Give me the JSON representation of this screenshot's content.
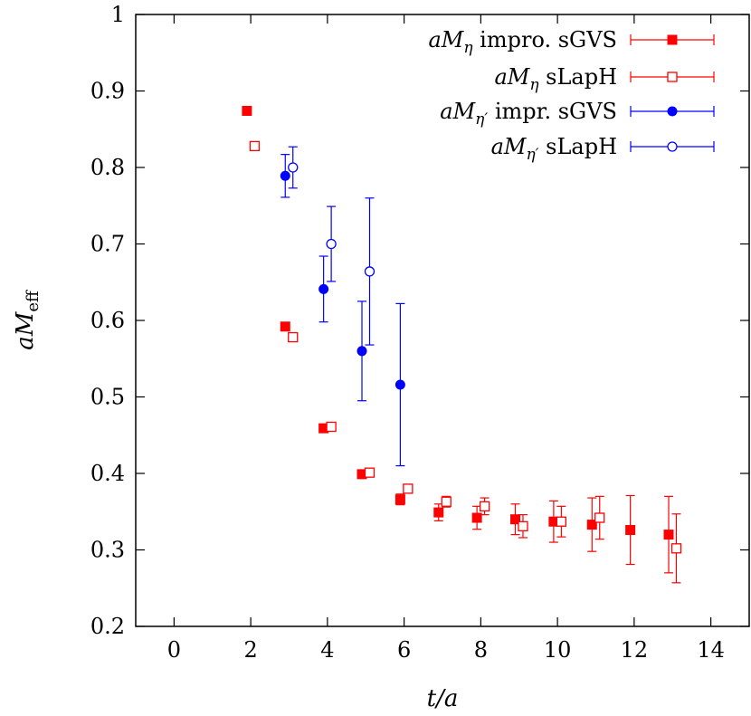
{
  "chart_data": {
    "type": "scatter",
    "xlabel": "t/a",
    "ylabel": "aM_eff",
    "xlim": [
      -1,
      15
    ],
    "ylim": [
      0.2,
      1.0
    ],
    "x_ticks": [
      0,
      2,
      4,
      6,
      8,
      10,
      12,
      14
    ],
    "y_ticks": [
      0.2,
      0.3,
      0.4,
      0.5,
      0.6,
      0.7,
      0.8,
      0.9,
      1.0
    ],
    "x_tick_labels": [
      "0",
      "2",
      "4",
      "6",
      "8",
      "10",
      "12",
      "14"
    ],
    "y_tick_labels": [
      "0.2",
      "0.3",
      "0.4",
      "0.5",
      "0.6",
      "0.7",
      "0.8",
      "0.9",
      "1"
    ],
    "legend_position": "top-right",
    "series": [
      {
        "name": "aM_η impro. sGVS",
        "color": "#ff0000",
        "marker": "filled-square",
        "points": [
          {
            "x": 1.9,
            "y": 0.874,
            "err": 0.002
          },
          {
            "x": 2.9,
            "y": 0.592,
            "err": 0.003
          },
          {
            "x": 3.9,
            "y": 0.459,
            "err": 0.003
          },
          {
            "x": 4.9,
            "y": 0.399,
            "err": 0.004
          },
          {
            "x": 5.9,
            "y": 0.366,
            "err": 0.007
          },
          {
            "x": 6.9,
            "y": 0.349,
            "err": 0.011
          },
          {
            "x": 7.9,
            "y": 0.342,
            "err": 0.015
          },
          {
            "x": 8.9,
            "y": 0.34,
            "err": 0.02
          },
          {
            "x": 9.9,
            "y": 0.337,
            "err": 0.027
          },
          {
            "x": 10.9,
            "y": 0.333,
            "err": 0.035
          },
          {
            "x": 11.9,
            "y": 0.326,
            "err": 0.045
          },
          {
            "x": 12.9,
            "y": 0.32,
            "err": 0.05
          }
        ]
      },
      {
        "name": "aM_η sLapH",
        "color": "#ff0000",
        "marker": "open-square",
        "points": [
          {
            "x": 2.1,
            "y": 0.828,
            "err": 0.003
          },
          {
            "x": 3.1,
            "y": 0.578,
            "err": 0.004
          },
          {
            "x": 4.1,
            "y": 0.461,
            "err": 0.004
          },
          {
            "x": 5.1,
            "y": 0.401,
            "err": 0.004
          },
          {
            "x": 6.1,
            "y": 0.38,
            "err": 0.005
          },
          {
            "x": 7.1,
            "y": 0.363,
            "err": 0.007
          },
          {
            "x": 8.1,
            "y": 0.357,
            "err": 0.011
          },
          {
            "x": 9.1,
            "y": 0.331,
            "err": 0.015
          },
          {
            "x": 10.1,
            "y": 0.337,
            "err": 0.02
          },
          {
            "x": 11.1,
            "y": 0.342,
            "err": 0.028
          },
          {
            "x": 13.1,
            "y": 0.302,
            "err": 0.045
          }
        ]
      },
      {
        "name": "aM_η′ impr. sGVS",
        "color": "#0000ff",
        "marker": "filled-circle",
        "points": [
          {
            "x": 2.9,
            "y": 0.789,
            "err": 0.028
          },
          {
            "x": 3.9,
            "y": 0.641,
            "err": 0.043
          },
          {
            "x": 4.9,
            "y": 0.56,
            "err": 0.065
          },
          {
            "x": 5.9,
            "y": 0.516,
            "err": 0.106
          }
        ]
      },
      {
        "name": "aM_η′ sLapH",
        "color": "#0000ff",
        "marker": "open-circle",
        "points": [
          {
            "x": 3.1,
            "y": 0.8,
            "err": 0.027
          },
          {
            "x": 4.1,
            "y": 0.7,
            "err": 0.049
          },
          {
            "x": 5.1,
            "y": 0.664,
            "err": 0.096
          }
        ]
      }
    ]
  },
  "legend": [
    {
      "prefix": "aM",
      "sub": "η",
      "suffix": " impro. sGVS"
    },
    {
      "prefix": "aM",
      "sub": "η",
      "suffix": " sLapH"
    },
    {
      "prefix": "aM",
      "sub": "η′",
      "suffix": " impr. sGVS"
    },
    {
      "prefix": "aM",
      "sub": "η′",
      "suffix": " sLapH"
    }
  ],
  "axis_titles": {
    "x": "t/a",
    "y_main": "aM",
    "y_sub": "eff"
  }
}
